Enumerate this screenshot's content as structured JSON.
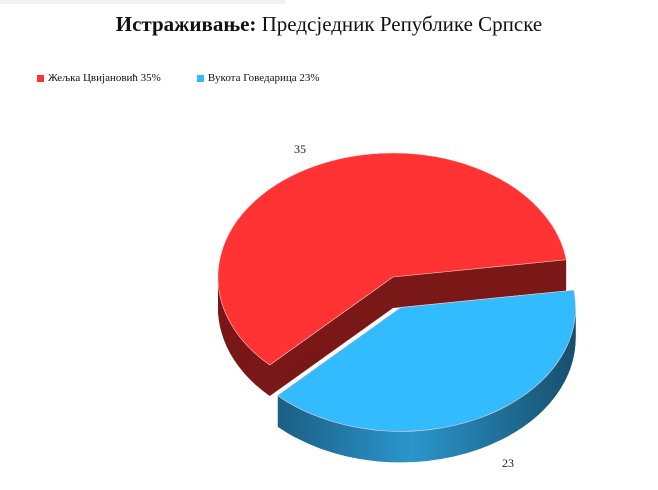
{
  "title": {
    "bold": "Истраживање:",
    "rest": "Предсједник Републике Српске"
  },
  "legend": [
    {
      "label": "Жељка Цвијановић 35%",
      "color": "#ff3333"
    },
    {
      "label": "Вукота Говедарица 23%",
      "color": "#33bbff"
    }
  ],
  "chart_data": {
    "type": "pie",
    "title": "Истраживање: Предсједник Републике Српске",
    "style": "3d",
    "legend_position": "top-left",
    "categories": [
      "Жељка Цвијановић",
      "Вукота Говедарица"
    ],
    "values": [
      35,
      23
    ],
    "data_labels": [
      "35",
      "23"
    ],
    "colors": [
      "#ff3333",
      "#33bbff"
    ],
    "exploded": [
      false,
      true
    ]
  }
}
